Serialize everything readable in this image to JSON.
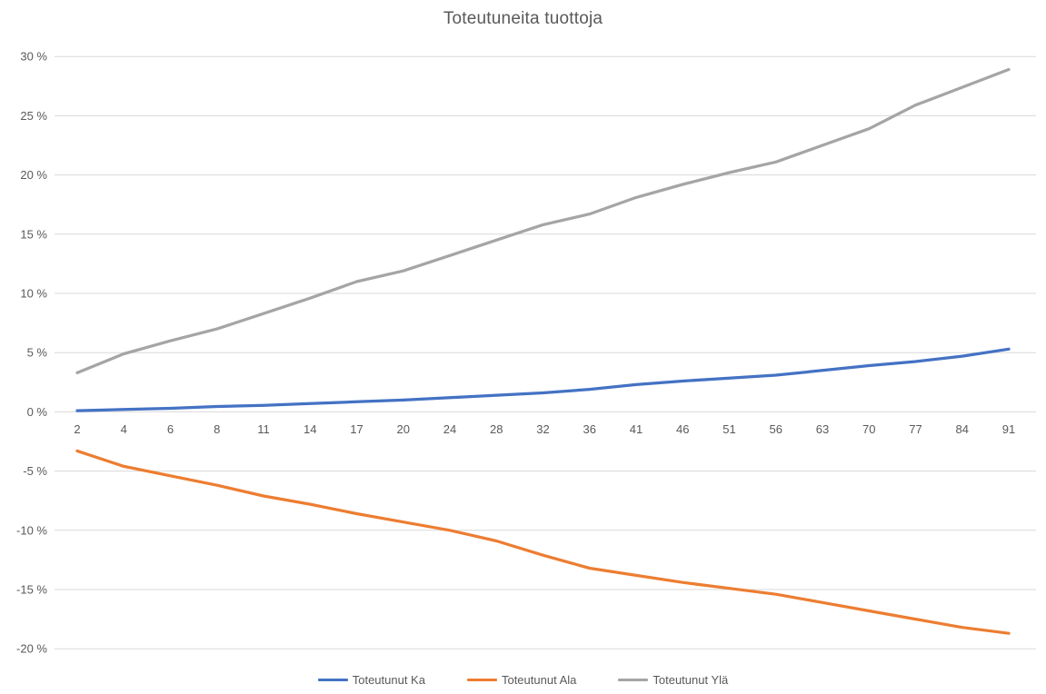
{
  "chart_data": {
    "type": "line",
    "title": "Toteutuneita tuottoja",
    "xlabel": "",
    "ylabel": "",
    "categories": [
      2,
      4,
      6,
      8,
      11,
      14,
      17,
      20,
      24,
      28,
      32,
      36,
      41,
      46,
      51,
      56,
      63,
      70,
      77,
      84,
      91
    ],
    "series": [
      {
        "name": "Toteutunut Ka",
        "color": "#4472C4",
        "values": [
          0.1,
          0.2,
          0.3,
          0.45,
          0.55,
          0.7,
          0.85,
          1.0,
          1.2,
          1.4,
          1.6,
          1.9,
          2.3,
          2.6,
          2.85,
          3.1,
          3.5,
          3.9,
          4.25,
          4.7,
          5.3
        ]
      },
      {
        "name": "Toteutunut Ala",
        "color": "#ED7D31",
        "values": [
          -3.3,
          -4.6,
          -5.4,
          -6.2,
          -7.1,
          -7.8,
          -8.6,
          -9.3,
          -10.0,
          -10.9,
          -12.1,
          -13.2,
          -13.8,
          -14.4,
          -14.9,
          -15.4,
          -16.1,
          -16.8,
          -17.5,
          -18.2,
          -18.7
        ]
      },
      {
        "name": "Toteutunut Ylä",
        "color": "#A5A5A5",
        "values": [
          3.3,
          4.9,
          6.0,
          7.0,
          8.3,
          9.6,
          11.0,
          11.9,
          13.2,
          14.5,
          15.8,
          16.7,
          18.1,
          19.2,
          20.2,
          21.1,
          22.5,
          23.9,
          25.9,
          27.4,
          28.9
        ]
      }
    ],
    "y_axis": {
      "min": -20,
      "max": 30,
      "step": 5,
      "unit": "%",
      "tick_values": [
        30,
        25,
        20,
        15,
        10,
        5,
        0,
        -5,
        -10,
        -15,
        -20
      ],
      "tick_labels": [
        "30 %",
        "25 %",
        "20 %",
        "15 %",
        "10 %",
        "5 %",
        "0 %",
        "-5 %",
        "-10 %",
        "-15 %",
        "-20 %"
      ]
    },
    "grid": true,
    "legend_position": "bottom",
    "colors": {
      "title_text": "#595959",
      "axis_text": "#595959",
      "gridline": "#D9D9D9",
      "background": "#FFFFFF"
    }
  }
}
